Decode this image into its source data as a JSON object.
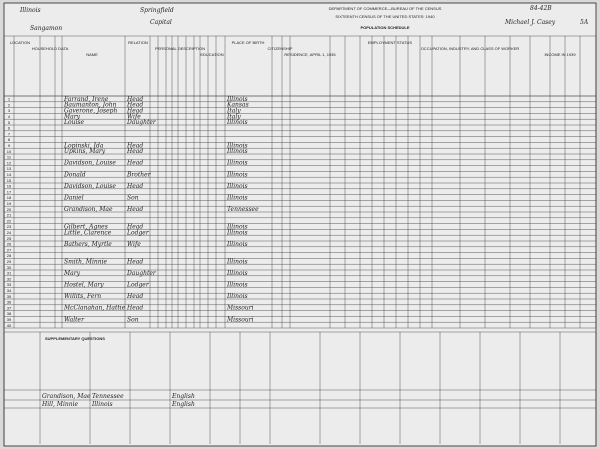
{
  "header": {
    "state": "Illinois",
    "county": "Sangamon",
    "town": "Springfield",
    "ward": "Capital",
    "department": "DEPARTMENT OF COMMERCE—BUREAU OF THE CENSUS",
    "census": "SIXTEENTH CENSUS OF THE UNITED STATES: 1940",
    "schedule": "POPULATION SCHEDULE",
    "sheet": "5A",
    "district": "84-42B",
    "enumerator": "Michael J. Casey"
  },
  "columns": [
    "LOCATION",
    "HOUSEHOLD DATA",
    "NAME",
    "RELATION",
    "PERSONAL DESCRIPTION",
    "EDUCATION",
    "PLACE OF BIRTH",
    "CITIZENSHIP",
    "RESIDENCE, APRIL 1, 1935",
    "EMPLOYMENT STATUS",
    "OCCUPATION, INDUSTRY, AND CLASS OF WORKER",
    "INCOME IN 1939"
  ],
  "line_numbers": [
    1,
    2,
    3,
    4,
    5,
    6,
    7,
    8,
    9,
    10,
    11,
    12,
    13,
    14,
    15,
    16,
    17,
    18,
    19,
    20,
    21,
    22,
    23,
    24,
    25,
    26,
    27,
    28,
    29,
    30,
    31,
    32,
    33,
    34,
    35,
    36,
    37,
    38,
    39,
    40
  ],
  "entries": [
    {
      "line": 1,
      "name": "Farrand, Irene",
      "relation": "Head",
      "birthplace": "Illinois"
    },
    {
      "line": 2,
      "name": "Baumanton, John",
      "relation": "Head",
      "birthplace": "Kansas"
    },
    {
      "line": 3,
      "name": "Gaverone, Joseph",
      "relation": "Head",
      "birthplace": "Italy"
    },
    {
      "line": 4,
      "name": "Mary",
      "relation": "Wife",
      "birthplace": "Italy"
    },
    {
      "line": 5,
      "name": "Louise",
      "relation": "Daughter",
      "birthplace": "Illinois"
    },
    {
      "line": 9,
      "name": "Lopinski, Ida",
      "relation": "Head",
      "birthplace": "Illinois"
    },
    {
      "line": 10,
      "name": "Upkins, Mary",
      "relation": "Head",
      "birthplace": "Illinois"
    },
    {
      "line": 12,
      "name": "Davidson, Louise",
      "relation": "Head",
      "birthplace": "Illinois"
    },
    {
      "line": 14,
      "name": "Donald",
      "relation": "Brother",
      "birthplace": "Illinois"
    },
    {
      "line": 16,
      "name": "Davidson, Louise",
      "relation": "Head",
      "birthplace": "Illinois"
    },
    {
      "line": 18,
      "name": "Daniel",
      "relation": "Son",
      "birthplace": "Illinois"
    },
    {
      "line": 20,
      "name": "Grandison, Mae",
      "relation": "Head",
      "birthplace": "Tennessee"
    },
    {
      "line": 23,
      "name": "Gilbert, Agnes",
      "relation": "Head",
      "birthplace": "Illinois"
    },
    {
      "line": 24,
      "name": "Little, Clarence",
      "relation": "Lodger",
      "birthplace": "Illinois"
    },
    {
      "line": 26,
      "name": "Bathers, Myrtle",
      "relation": "Wife",
      "birthplace": "Illinois"
    },
    {
      "line": 29,
      "name": "Smith, Minnie",
      "relation": "Head",
      "birthplace": "Illinois"
    },
    {
      "line": 31,
      "name": "Mary",
      "relation": "Daughter",
      "birthplace": "Illinois"
    },
    {
      "line": 33,
      "name": "Hostel, Mary",
      "relation": "Lodger",
      "birthplace": "Illinois"
    },
    {
      "line": 35,
      "name": "Willits, Fern",
      "relation": "Head",
      "birthplace": "Illinois"
    },
    {
      "line": 37,
      "name": "McClanahan, Hattie",
      "relation": "Head",
      "birthplace": "Missouri"
    },
    {
      "line": 39,
      "name": "Walter",
      "relation": "Son",
      "birthplace": "Missouri"
    }
  ],
  "supplementary": {
    "title": "SUPPLEMENTARY QUESTIONS",
    "rows": [
      {
        "name": "Grandison, Mae",
        "birthplace": "Tennessee",
        "language": "English"
      },
      {
        "name": "Hill, Minnie",
        "birthplace": "Illinois",
        "language": "English"
      }
    ]
  }
}
